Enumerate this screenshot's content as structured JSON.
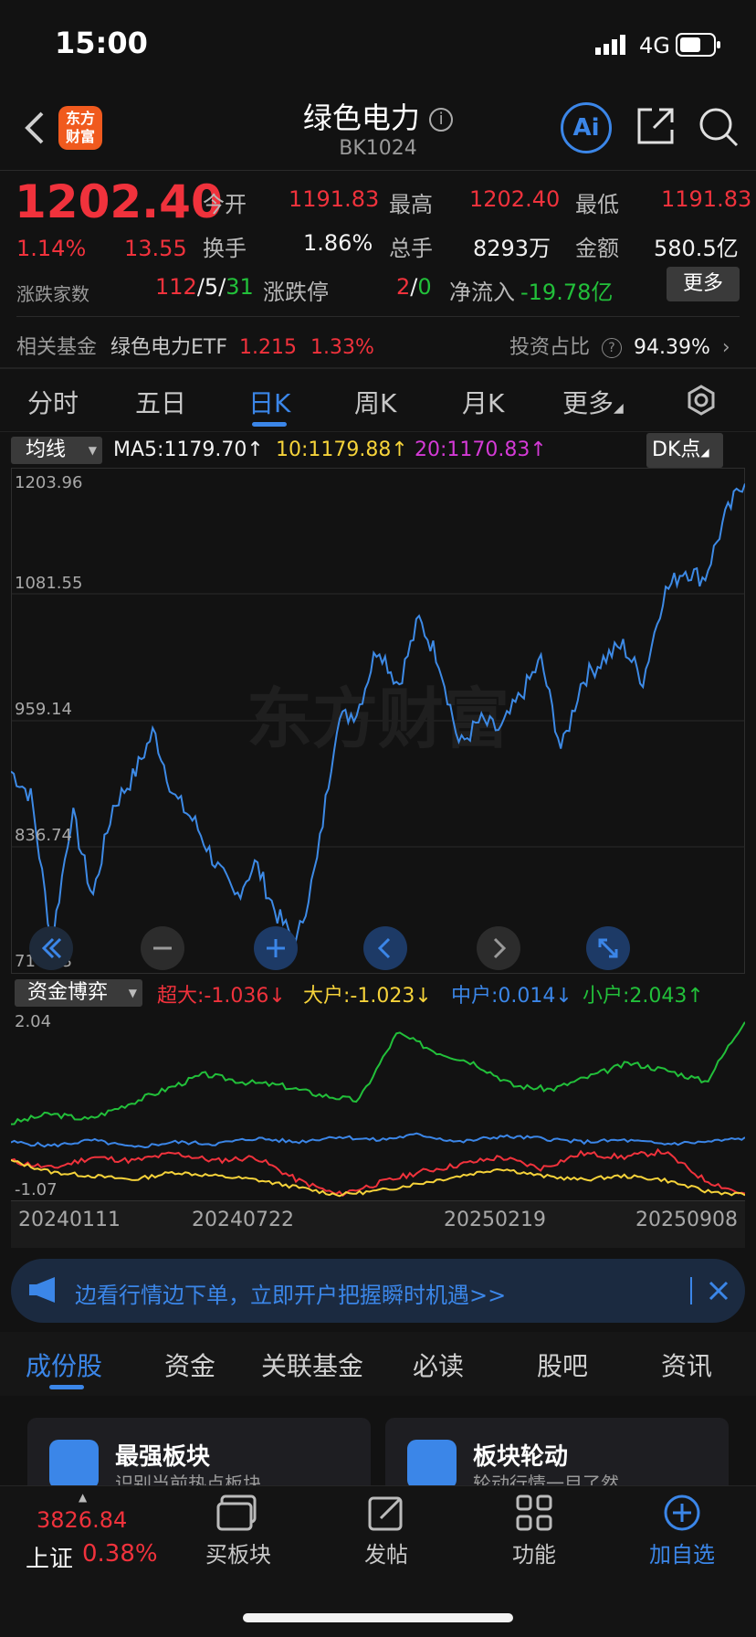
{
  "status": {
    "time": "15:00",
    "network": "4G"
  },
  "header": {
    "logo_line1": "东方",
    "logo_line2": "财富",
    "title": "绿色电力",
    "code": "BK1024",
    "ai_label": "Ai"
  },
  "quote": {
    "price": "1202.40",
    "change_pct": "1.14%",
    "change": "13.55",
    "open_label": "今开",
    "open": "1191.83",
    "high_label": "最高",
    "high": "1202.40",
    "low_label": "最低",
    "low": "1191.83",
    "turnover_label": "换手",
    "turnover": "1.86%",
    "volume_label": "总手",
    "volume": "8293万",
    "amount_label": "金额",
    "amount": "580.5亿",
    "breadth_label": "涨跌家数",
    "up": "112",
    "flat": "5",
    "down": "31",
    "limit_label": "涨跌停",
    "limit_up": "2",
    "limit_down": "0",
    "inflow_label": "净流入",
    "inflow": "-19.78亿",
    "more_button": "更多"
  },
  "fund": {
    "label": "相关基金",
    "name": "绿色电力ETF",
    "price": "1.215",
    "pct": "1.33%",
    "ratio_label": "投资占比",
    "ratio": "94.39%"
  },
  "tabs": [
    "分时",
    "五日",
    "日K",
    "周K",
    "月K",
    "更多"
  ],
  "chart": {
    "ma_selector": "均线",
    "ma5": "MA5:1179.70",
    "ma10": "10:1179.88",
    "ma20": "20:1170.83",
    "dk_button": "DK点",
    "watermark": "东方财富",
    "ticks": [
      "1203.96",
      "1081.55",
      "959.14",
      "836.74",
      "714.33"
    ]
  },
  "flow": {
    "selector": "资金博弈",
    "super": "超大:-1.036",
    "large": "大户:-1.023",
    "mid": "中户:0.014",
    "small": "小户:2.043",
    "top": "2.04",
    "bottom": "-1.07",
    "dates": [
      "20240111",
      "20240722",
      "20250219",
      "20250908"
    ]
  },
  "banner": {
    "text": "边看行情边下单，立即开户把握瞬时机遇>>"
  },
  "section_tabs": [
    "成份股",
    "资金",
    "关联基金",
    "必读",
    "股吧",
    "资讯"
  ],
  "cards": [
    {
      "title": "最强板块",
      "subtitle": "识别当前热点板块"
    },
    {
      "title": "板块轮动",
      "subtitle": "轮动行情一目了然"
    }
  ],
  "nav": {
    "index_value": "3826.84",
    "index_name": "上证",
    "index_pct": "0.38%",
    "items": [
      "买板块",
      "发帖",
      "功能",
      "加自选"
    ]
  },
  "colors": {
    "up": "#f0323c",
    "down": "#22c03a",
    "accent": "#3b86e8",
    "bg": "#121212"
  }
}
